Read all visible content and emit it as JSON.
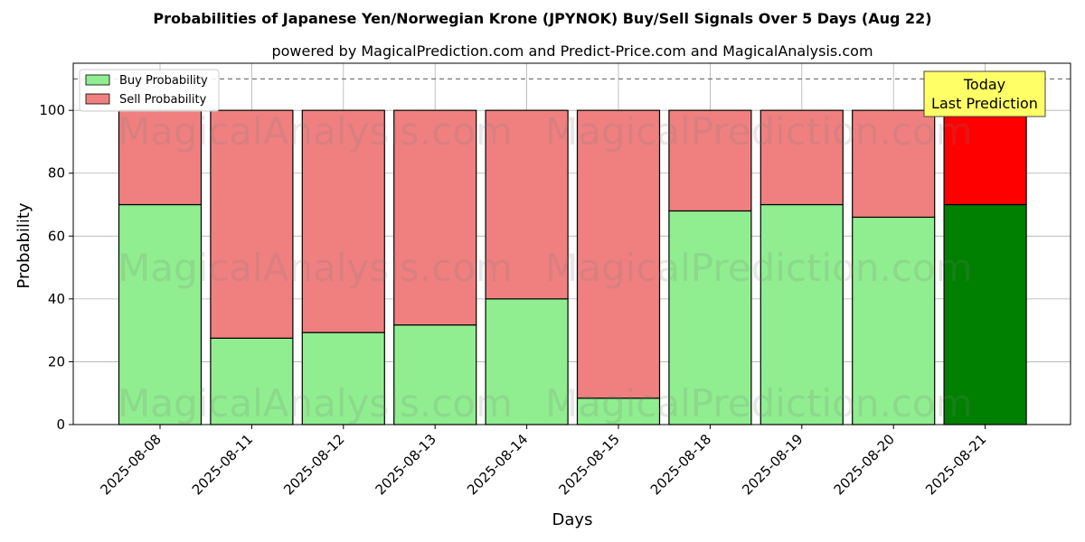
{
  "chart_data": {
    "type": "bar",
    "stacked": true,
    "title": "Probabilities of Japanese Yen/Norwegian Krone (JPYNOK) Buy/Sell Signals Over 5 Days (Aug 22)",
    "subtitle": "powered by MagicalPrediction.com and Predict-Price.com and MagicalAnalysis.com",
    "xlabel": "Days",
    "ylabel": "Probability",
    "ylim": [
      0,
      115
    ],
    "yticks": [
      0,
      20,
      40,
      60,
      80,
      100
    ],
    "grid": true,
    "legend_position": "top-left",
    "reference_line": 110,
    "categories": [
      "2025-08-08",
      "2025-08-11",
      "2025-08-12",
      "2025-08-13",
      "2025-08-14",
      "2025-08-15",
      "2025-08-18",
      "2025-08-19",
      "2025-08-20",
      "2025-08-21"
    ],
    "series": [
      {
        "name": "Buy Probability",
        "color": "#90ee90",
        "highlight_color": "#008000",
        "values": [
          70,
          27.5,
          29.3,
          31.7,
          40,
          8.4,
          68,
          70,
          66,
          70
        ]
      },
      {
        "name": "Sell Probability",
        "color": "#f08080",
        "highlight_color": "#ff0000",
        "values": [
          30,
          72.5,
          70.7,
          68.3,
          60,
          91.6,
          32,
          30,
          34,
          30
        ]
      }
    ],
    "highlight_index": 9,
    "annotation": {
      "line1": "Today",
      "line2": "Last Prediction",
      "background": "#ffff66"
    },
    "watermarks": [
      "MagicalAnalysis.com",
      "MagicalPrediction.com"
    ]
  }
}
